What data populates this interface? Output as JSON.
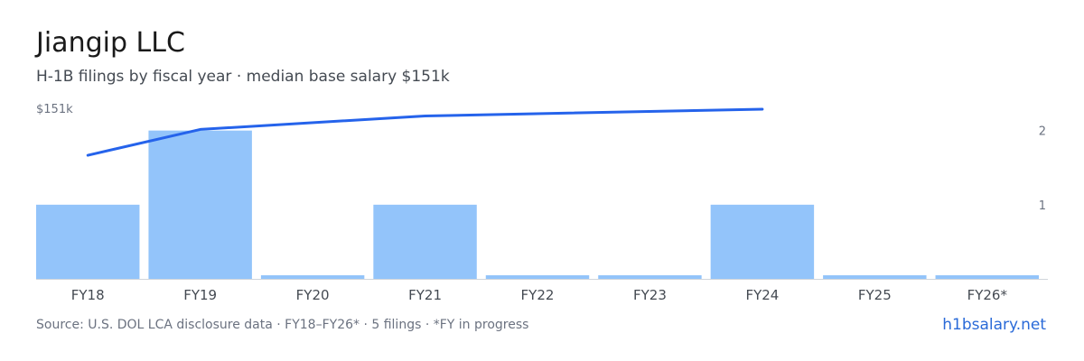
{
  "header": {
    "title": "Jiangip LLC",
    "subtitle": "H-1B filings by fiscal year · median base salary $151k"
  },
  "footer": {
    "source": "Source: U.S. DOL LCA disclosure data · FY18–FY26* · 5 filings · *FY in progress",
    "link": "h1bsalary.net"
  },
  "chart_data": {
    "type": "bar",
    "categories": [
      "FY18",
      "FY19",
      "FY20",
      "FY21",
      "FY22",
      "FY23",
      "FY24",
      "FY25",
      "FY26*"
    ],
    "series": [
      {
        "type": "bar",
        "axis": "right",
        "values": [
          1,
          2,
          0,
          1,
          0,
          0,
          1,
          0,
          0
        ]
      },
      {
        "type": "line",
        "axis": "left",
        "values": [
          110,
          133,
          null,
          145,
          null,
          null,
          151,
          null,
          null
        ]
      }
    ],
    "left_axis": {
      "top_label": "$151k",
      "max": 151
    },
    "right_axis": {
      "ticks": [
        "1",
        "2"
      ],
      "max": 2.3
    },
    "colors": {
      "bar": "#93c4fa",
      "line": "#2563eb",
      "baseline": "#d1d5db"
    },
    "grid": false
  }
}
